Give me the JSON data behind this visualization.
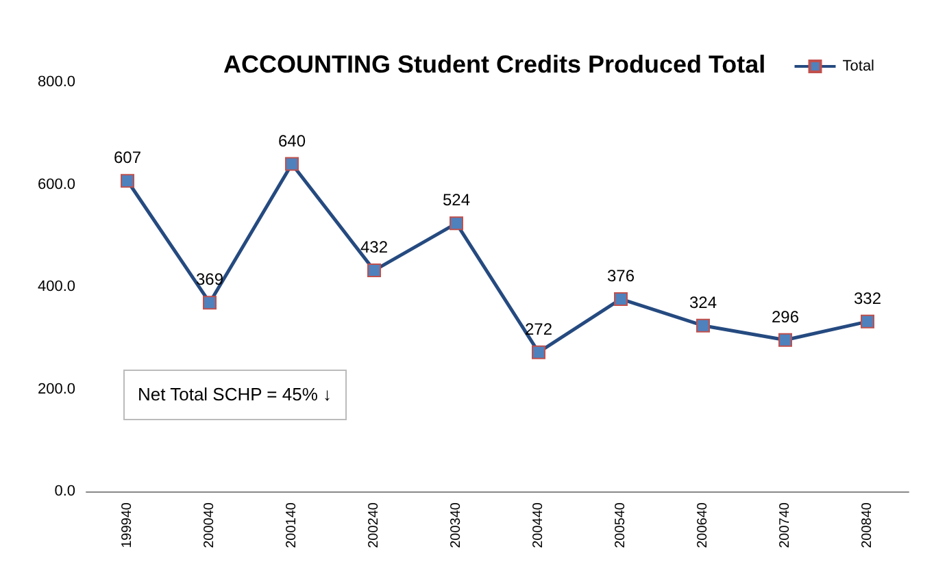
{
  "chart_data": {
    "type": "line",
    "title": "ACCOUNTING Student Credits Produced Total",
    "categories": [
      "199940",
      "200040",
      "200140",
      "200240",
      "200340",
      "200440",
      "200540",
      "200640",
      "200740",
      "200840"
    ],
    "series": [
      {
        "name": "Total",
        "color": "#254a80",
        "values": [
          607,
          369,
          640,
          432,
          524,
          272,
          376,
          324,
          296,
          332
        ]
      }
    ],
    "ylim": [
      0,
      800
    ],
    "yticks": [
      {
        "value": 0,
        "label": "0.0"
      },
      {
        "value": 200,
        "label": "200.0"
      },
      {
        "value": 400,
        "label": "400.0"
      },
      {
        "value": 600,
        "label": "600.0"
      },
      {
        "value": 800,
        "label": "800.0"
      }
    ],
    "annotations": [
      "Net Total SCHP = 45% ↓"
    ],
    "data_labels": true,
    "grid": false,
    "legend": "top right",
    "marker": "square",
    "line_style": "solid"
  }
}
